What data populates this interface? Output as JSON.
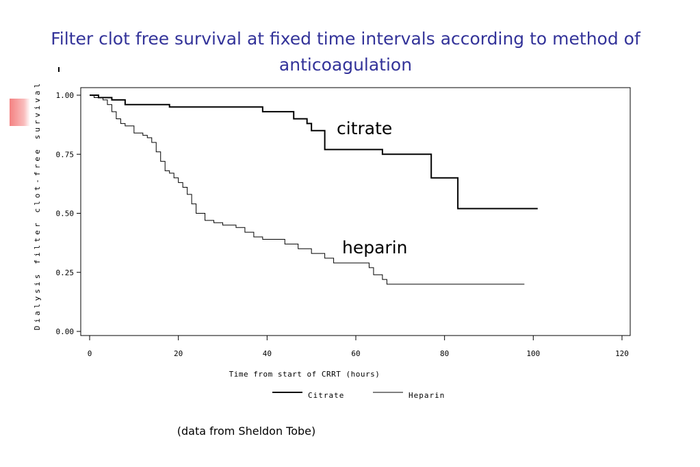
{
  "slide": {
    "title_line1": "Filter clot free survival at fixed time intervals according to method of",
    "title_line2": "anticoagulation",
    "caption": "(data from Sheldon Tobe)"
  },
  "colors": {
    "title": "#333399",
    "line": "#000000",
    "accent": "#f26b6b"
  },
  "chart_data": {
    "type": "line",
    "step": true,
    "xlabel": "Time from start of CRRT (hours)",
    "ylabel": "Dialysis filter clot-free survival",
    "xlim": [
      0,
      120
    ],
    "ylim": [
      0,
      1
    ],
    "xticks": [
      0,
      20,
      40,
      60,
      80,
      100,
      120
    ],
    "xtick_labels": [
      "0",
      "20",
      "40",
      "60",
      "80",
      "100",
      "120"
    ],
    "yticks": [
      0,
      0.25,
      0.5,
      0.75,
      1.0
    ],
    "ytick_labels": [
      "0.00",
      "0.25",
      "0.50",
      "0.75",
      "1.00"
    ],
    "grid": false,
    "legend": {
      "position": "bottom",
      "entries": [
        "Citrate",
        "Heparin"
      ]
    },
    "annotations": [
      {
        "text": "citrate",
        "series": "Citrate"
      },
      {
        "text": "heparin",
        "series": "Heparin"
      }
    ],
    "series": [
      {
        "name": "Citrate",
        "style": "thick",
        "x": [
          0,
          2,
          5,
          8,
          18,
          39,
          46,
          49,
          50,
          53,
          66,
          77,
          83,
          101
        ],
        "y": [
          1.0,
          0.99,
          0.98,
          0.96,
          0.95,
          0.93,
          0.9,
          0.88,
          0.85,
          0.77,
          0.75,
          0.65,
          0.52,
          0.52
        ]
      },
      {
        "name": "Heparin",
        "style": "thin",
        "x": [
          0,
          1,
          3,
          4,
          5,
          6,
          7,
          8,
          10,
          12,
          13,
          14,
          15,
          16,
          17,
          18,
          19,
          20,
          21,
          22,
          23,
          24,
          26,
          28,
          30,
          33,
          35,
          37,
          39,
          44,
          47,
          50,
          53,
          55,
          63,
          64,
          66,
          67,
          98
        ],
        "y": [
          1.0,
          0.99,
          0.98,
          0.96,
          0.93,
          0.9,
          0.88,
          0.87,
          0.84,
          0.83,
          0.82,
          0.8,
          0.76,
          0.72,
          0.68,
          0.67,
          0.65,
          0.63,
          0.61,
          0.58,
          0.54,
          0.5,
          0.47,
          0.46,
          0.45,
          0.44,
          0.42,
          0.4,
          0.39,
          0.37,
          0.35,
          0.33,
          0.31,
          0.29,
          0.27,
          0.24,
          0.22,
          0.2,
          0.2
        ]
      }
    ]
  }
}
